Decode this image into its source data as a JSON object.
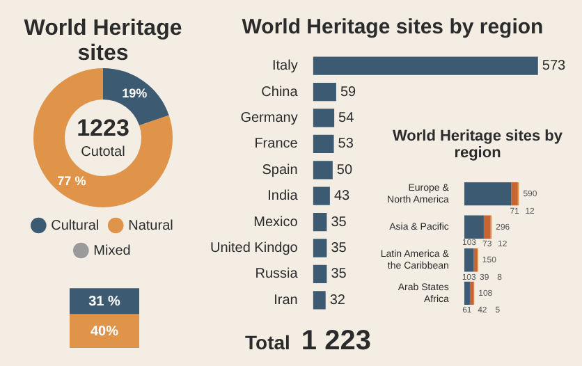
{
  "chart_data": [
    {
      "type": "donut",
      "title": "World Heritage sites",
      "categories": [
        "Cultural",
        "Natural",
        "Mixed"
      ],
      "values": [
        19,
        77,
        null
      ],
      "colors": [
        "#3d5a73",
        "#e0944a",
        "#9a9a9a"
      ],
      "value_labels": [
        "19%",
        "77 %",
        null
      ],
      "annotations": [
        "1223",
        "Cutotal"
      ],
      "legend": "bottom"
    },
    {
      "type": "bar",
      "stacked": true,
      "tick_labels": false,
      "categories": [
        null
      ],
      "series": [
        {
          "color": "#e0944a",
          "values": [
            40
          ],
          "value_labels": [
            "40%"
          ]
        },
        {
          "color": "#3d5a73",
          "values": [
            31
          ],
          "value_labels": [
            "31 %"
          ]
        }
      ]
    },
    {
      "type": "bar",
      "orientation": "horizontal",
      "tick_labels": "y",
      "title": "World Heritage sites by region",
      "categories": [
        "Italy",
        "China",
        "Germany",
        "France",
        "Spain",
        "India",
        "Mexico",
        "United Kindgo",
        "Russia",
        "Iran"
      ],
      "values": [
        573,
        59,
        54,
        53,
        50,
        43,
        35,
        35,
        35,
        32
      ],
      "color": "#3d5a73",
      "data_labels": true,
      "annotations": [
        "Total",
        "1 223"
      ]
    },
    {
      "type": "bar",
      "orientation": "horizontal",
      "stacked": true,
      "tick_labels": "y",
      "title": "World Heritage sites by region",
      "categories": [
        "Europe &\nNorth America",
        "Asia & Pacific",
        "Latin America &\nthe Caribbean",
        "Arab States\nAfrica"
      ],
      "series": [
        {
          "color": "#3d5a73",
          "values": [
            507,
            211,
            103,
            61
          ],
          "value_labels": [
            null,
            null,
            "103",
            "61"
          ]
        },
        {
          "color": "#c8652f",
          "values": [
            71,
            73,
            39,
            42
          ],
          "value_labels": [
            "71",
            "73",
            "39",
            "42"
          ]
        },
        {
          "color": "#e0944a",
          "values": [
            12,
            12,
            8,
            5
          ],
          "value_labels": [
            "12",
            "12",
            "8",
            "5"
          ]
        }
      ],
      "totals": [
        "590",
        "296",
        "150",
        "108"
      ],
      "annotations": [
        "103"
      ]
    }
  ]
}
